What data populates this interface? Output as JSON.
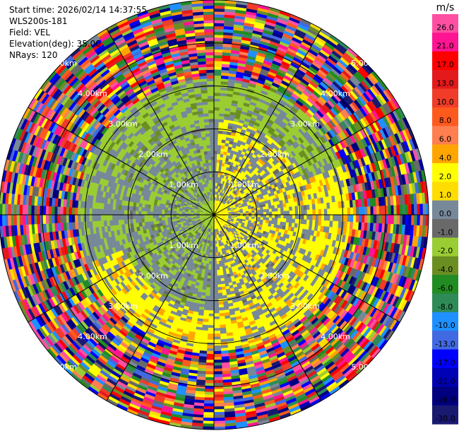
{
  "header": {
    "start_time": "Start time: 2026/02/14 14:37:55",
    "site": "WLS200s-181",
    "field": "Field: VEL",
    "elevation": "Elevation(deg): 35.00",
    "nrays": "NRays: 120"
  },
  "chart_data": {
    "type": "heatmap",
    "projection": "polar-ppi",
    "field": "VEL",
    "units": "m/s",
    "n_rays": 120,
    "elevation_deg": 35.0,
    "range_rings": [
      {
        "label": "1.00km",
        "km": 1
      },
      {
        "label": "2.00km",
        "km": 2
      },
      {
        "label": "3.00km",
        "km": 3
      },
      {
        "label": "4.00km",
        "km": 4
      },
      {
        "label": "5.00km",
        "km": 5
      }
    ],
    "range_ring_azimuths_deg": [
      315,
      45,
      135,
      225
    ],
    "max_range_km": 5.0,
    "radial_spokes_deg": [
      0,
      30,
      60,
      90,
      120,
      150,
      180,
      210,
      240,
      270,
      300,
      330
    ],
    "colorbar": {
      "unit": "m/s",
      "ticks": [
        "26.0",
        "21.0",
        "17.0",
        "13.0",
        "10.0",
        "8.0",
        "6.0",
        "4.0",
        "2.0",
        "1.0",
        "0.0",
        "-1.0",
        "-2.0",
        "-4.0",
        "-6.0",
        "-8.0",
        "-10.0",
        "-13.0",
        "-17.0",
        "-21.0",
        "-26.0",
        "-30.0"
      ],
      "colors": [
        "#ff4fa3",
        "#ff1493",
        "#ff0000",
        "#e3191c",
        "#f03c28",
        "#ff5a1e",
        "#ff7f50",
        "#ffa500",
        "#ffff00",
        "#ffdd00",
        "#778899",
        "#696969",
        "#9acd32",
        "#6b8e23",
        "#228b22",
        "#2e8b57",
        "#1e90ff",
        "#4169e1",
        "#0000ff",
        "#0000b4",
        "#000080",
        "#191970"
      ]
    },
    "pattern": {
      "near_field": {
        "max_km": 2.2,
        "east_half": "positive 1 to 4 m/s (yellow)",
        "west_half": "negative -1 to -2 m/s (green)",
        "background": "0 m/s (gray)"
      },
      "mid_ring_km": [
        2.2,
        3.2
      ],
      "far_field": "noise, all classes (km > 3.2)"
    }
  }
}
